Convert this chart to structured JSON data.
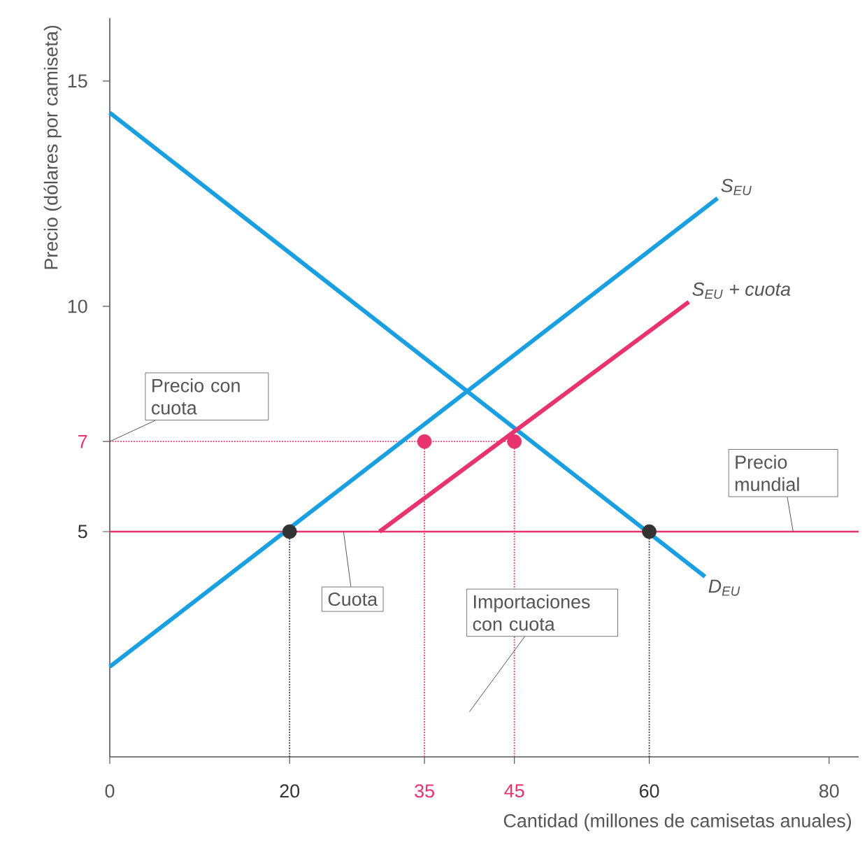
{
  "chart_data": {
    "type": "line",
    "xlabel": "Cantidad (millones de camisetas anuales)",
    "ylabel": "Precio (dólares por camiseta)",
    "xlim": [
      0,
      83.3
    ],
    "ylim": [
      0,
      16.4
    ],
    "xticks": [
      0,
      20,
      35,
      45,
      60,
      80
    ],
    "yticks": [
      5,
      7,
      10,
      15
    ],
    "ref_lines": [
      {
        "axis": "y",
        "value": 5,
        "color": "#e8336e"
      }
    ],
    "series": [
      {
        "line_style": "dotted",
        "color": "#e8336e",
        "x": [
          0,
          45
        ],
        "values": [
          7,
          7
        ]
      },
      {
        "line_style": "dotted",
        "color": "#333333",
        "x": [
          20,
          20
        ],
        "values": [
          0,
          5
        ]
      },
      {
        "line_style": "dotted",
        "color": "#e8336e",
        "x": [
          35,
          35
        ],
        "values": [
          0,
          7
        ]
      },
      {
        "line_style": "dotted",
        "color": "#e8336e",
        "x": [
          45,
          45
        ],
        "values": [
          0,
          7
        ]
      },
      {
        "line_style": "dotted",
        "color": "#333333",
        "x": [
          60,
          60
        ],
        "values": [
          0,
          5
        ]
      },
      {
        "name": "D$_{EU}$",
        "color": "#1a9fe0",
        "x": [
          0,
          66.2
        ],
        "values": [
          14.3,
          4.0
        ]
      },
      {
        "name": "S$_{EU}$",
        "color": "#1a9fe0",
        "x": [
          0,
          67.6
        ],
        "values": [
          2,
          12.4
        ]
      },
      {
        "name": "S$_{EU}$ + *cuota*",
        "color": "#e8336e",
        "x": [
          30,
          64.4
        ],
        "values": [
          5,
          10.1
        ]
      },
      {
        "type": "scatter",
        "marker": "circle",
        "color": "#333333",
        "x": [
          20,
          60
        ],
        "values": [
          5,
          5
        ]
      },
      {
        "type": "scatter",
        "marker": "circle",
        "color": "#e8336e",
        "x": [
          35,
          45
        ],
        "values": [
          7,
          7
        ]
      }
    ],
    "annotations": [
      {
        "text": "Precio con cuota",
        "x": 0,
        "y": 7
      },
      {
        "text": "Precio mundial",
        "x": 76,
        "y": 5
      },
      {
        "text": "Cuota",
        "x": 26,
        "y": 5
      },
      "Importaciones con cuota"
    ]
  }
}
